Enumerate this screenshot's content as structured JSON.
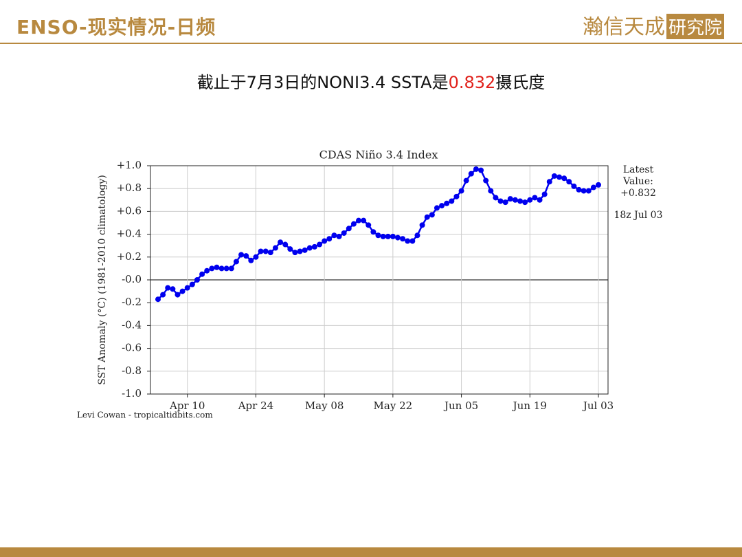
{
  "header": {
    "title": "ENSO-现实情况-日频",
    "logo": "瀚信天成",
    "logo_box": "研究院"
  },
  "subtitle": [
    "截止于7月3日的NONI3.4 SSTA是",
    "0.832",
    "摄氏度"
  ],
  "chart_data": {
    "type": "line",
    "title": "CDAS Niño 3.4 Index",
    "y_label": "SST Anomaly (°C) (1981-2010 climatology)",
    "categories": [
      "Apr 04",
      "Apr 05",
      "Apr 06",
      "Apr 07",
      "Apr 08",
      "Apr 09",
      "Apr 10",
      "Apr 11",
      "Apr 12",
      "Apr 13",
      "Apr 14",
      "Apr 15",
      "Apr 16",
      "Apr 17",
      "Apr 18",
      "Apr 19",
      "Apr 20",
      "Apr 21",
      "Apr 22",
      "Apr 23",
      "Apr 24",
      "Apr 25",
      "Apr 26",
      "Apr 27",
      "Apr 28",
      "Apr 29",
      "Apr 30",
      "May 01",
      "May 02",
      "May 03",
      "May 04",
      "May 05",
      "May 06",
      "May 07",
      "May 08",
      "May 09",
      "May 10",
      "May 11",
      "May 12",
      "May 13",
      "May 14",
      "May 15",
      "May 16",
      "May 17",
      "May 18",
      "May 19",
      "May 20",
      "May 21",
      "May 22",
      "May 23",
      "May 24",
      "May 25",
      "May 26",
      "May 27",
      "May 28",
      "May 29",
      "May 30",
      "May 31",
      "Jun 01",
      "Jun 02",
      "Jun 03",
      "Jun 04",
      "Jun 05",
      "Jun 06",
      "Jun 07",
      "Jun 08",
      "Jun 09",
      "Jun 10",
      "Jun 11",
      "Jun 12",
      "Jun 13",
      "Jun 14",
      "Jun 15",
      "Jun 16",
      "Jun 17",
      "Jun 18",
      "Jun 19",
      "Jun 20",
      "Jun 21",
      "Jun 22",
      "Jun 23",
      "Jun 24",
      "Jun 25",
      "Jun 26",
      "Jun 27",
      "Jun 28",
      "Jun 29",
      "Jun 30",
      "Jul 01",
      "Jul 02",
      "Jul 03"
    ],
    "series": [
      {
        "color": "#0000ee",
        "values": [
          -0.17,
          -0.13,
          -0.07,
          -0.08,
          -0.13,
          -0.1,
          -0.07,
          -0.04,
          0.0,
          0.05,
          0.08,
          0.1,
          0.11,
          0.1,
          0.1,
          0.1,
          0.16,
          0.22,
          0.21,
          0.17,
          0.2,
          0.25,
          0.25,
          0.24,
          0.28,
          0.33,
          0.31,
          0.27,
          0.24,
          0.25,
          0.26,
          0.28,
          0.29,
          0.31,
          0.34,
          0.36,
          0.39,
          0.38,
          0.41,
          0.45,
          0.49,
          0.52,
          0.52,
          0.48,
          0.42,
          0.39,
          0.38,
          0.38,
          0.38,
          0.37,
          0.36,
          0.34,
          0.34,
          0.39,
          0.48,
          0.55,
          0.57,
          0.63,
          0.65,
          0.67,
          0.69,
          0.73,
          0.78,
          0.87,
          0.93,
          0.97,
          0.96,
          0.87,
          0.78,
          0.72,
          0.69,
          0.68,
          0.71,
          0.7,
          0.69,
          0.68,
          0.7,
          0.72,
          0.7,
          0.75,
          0.86,
          0.91,
          0.9,
          0.89,
          0.86,
          0.82,
          0.79,
          0.78,
          0.78,
          0.81,
          0.832
        ]
      }
    ],
    "ylim": [
      -1.0,
      1.0
    ],
    "yticks": [
      {
        "value": 1.0,
        "label": "+1.0"
      },
      {
        "value": 0.8,
        "label": "+0.8"
      },
      {
        "value": 0.6,
        "label": "+0.6"
      },
      {
        "value": 0.4,
        "label": "+0.4"
      },
      {
        "value": 0.2,
        "label": "+0.2"
      },
      {
        "value": 0,
        "label": "-0.0"
      },
      {
        "value": -0.2,
        "label": "-0.2"
      },
      {
        "value": -0.4,
        "label": "-0.4"
      },
      {
        "value": -0.6,
        "label": "-0.6"
      },
      {
        "value": -0.8,
        "label": "-0.8"
      },
      {
        "value": -1.0,
        "label": "-1.0"
      }
    ],
    "xticks": [
      "Apr 10",
      "Apr 24",
      "May 08",
      "May 22",
      "Jun 05",
      "Jun 19",
      "Jul 03"
    ],
    "grid": true,
    "annotations": [
      "Latest",
      "Value:",
      "+0.832",
      "18z Jul 03"
    ],
    "credit": "Levi Cowan - tropicaltidbits.com"
  }
}
